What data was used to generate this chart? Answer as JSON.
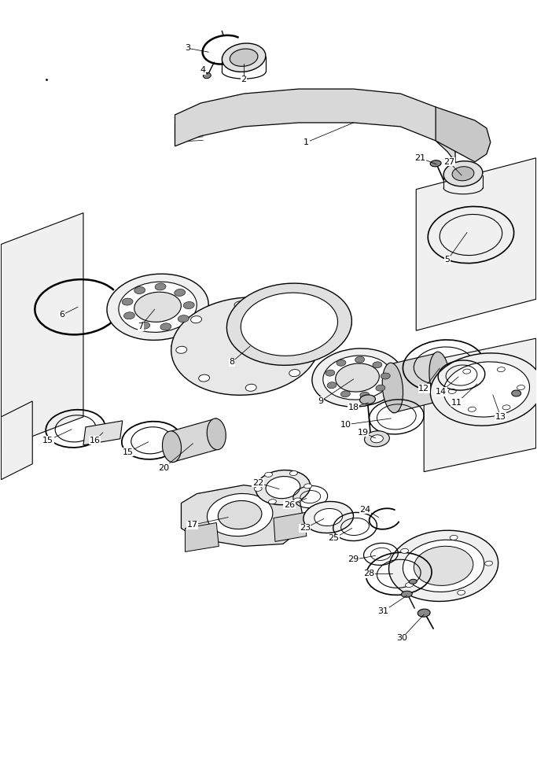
{
  "bg_color": "#ffffff",
  "line_color": "#000000",
  "fig_width": 6.83,
  "fig_height": 9.75,
  "dpi": 100
}
